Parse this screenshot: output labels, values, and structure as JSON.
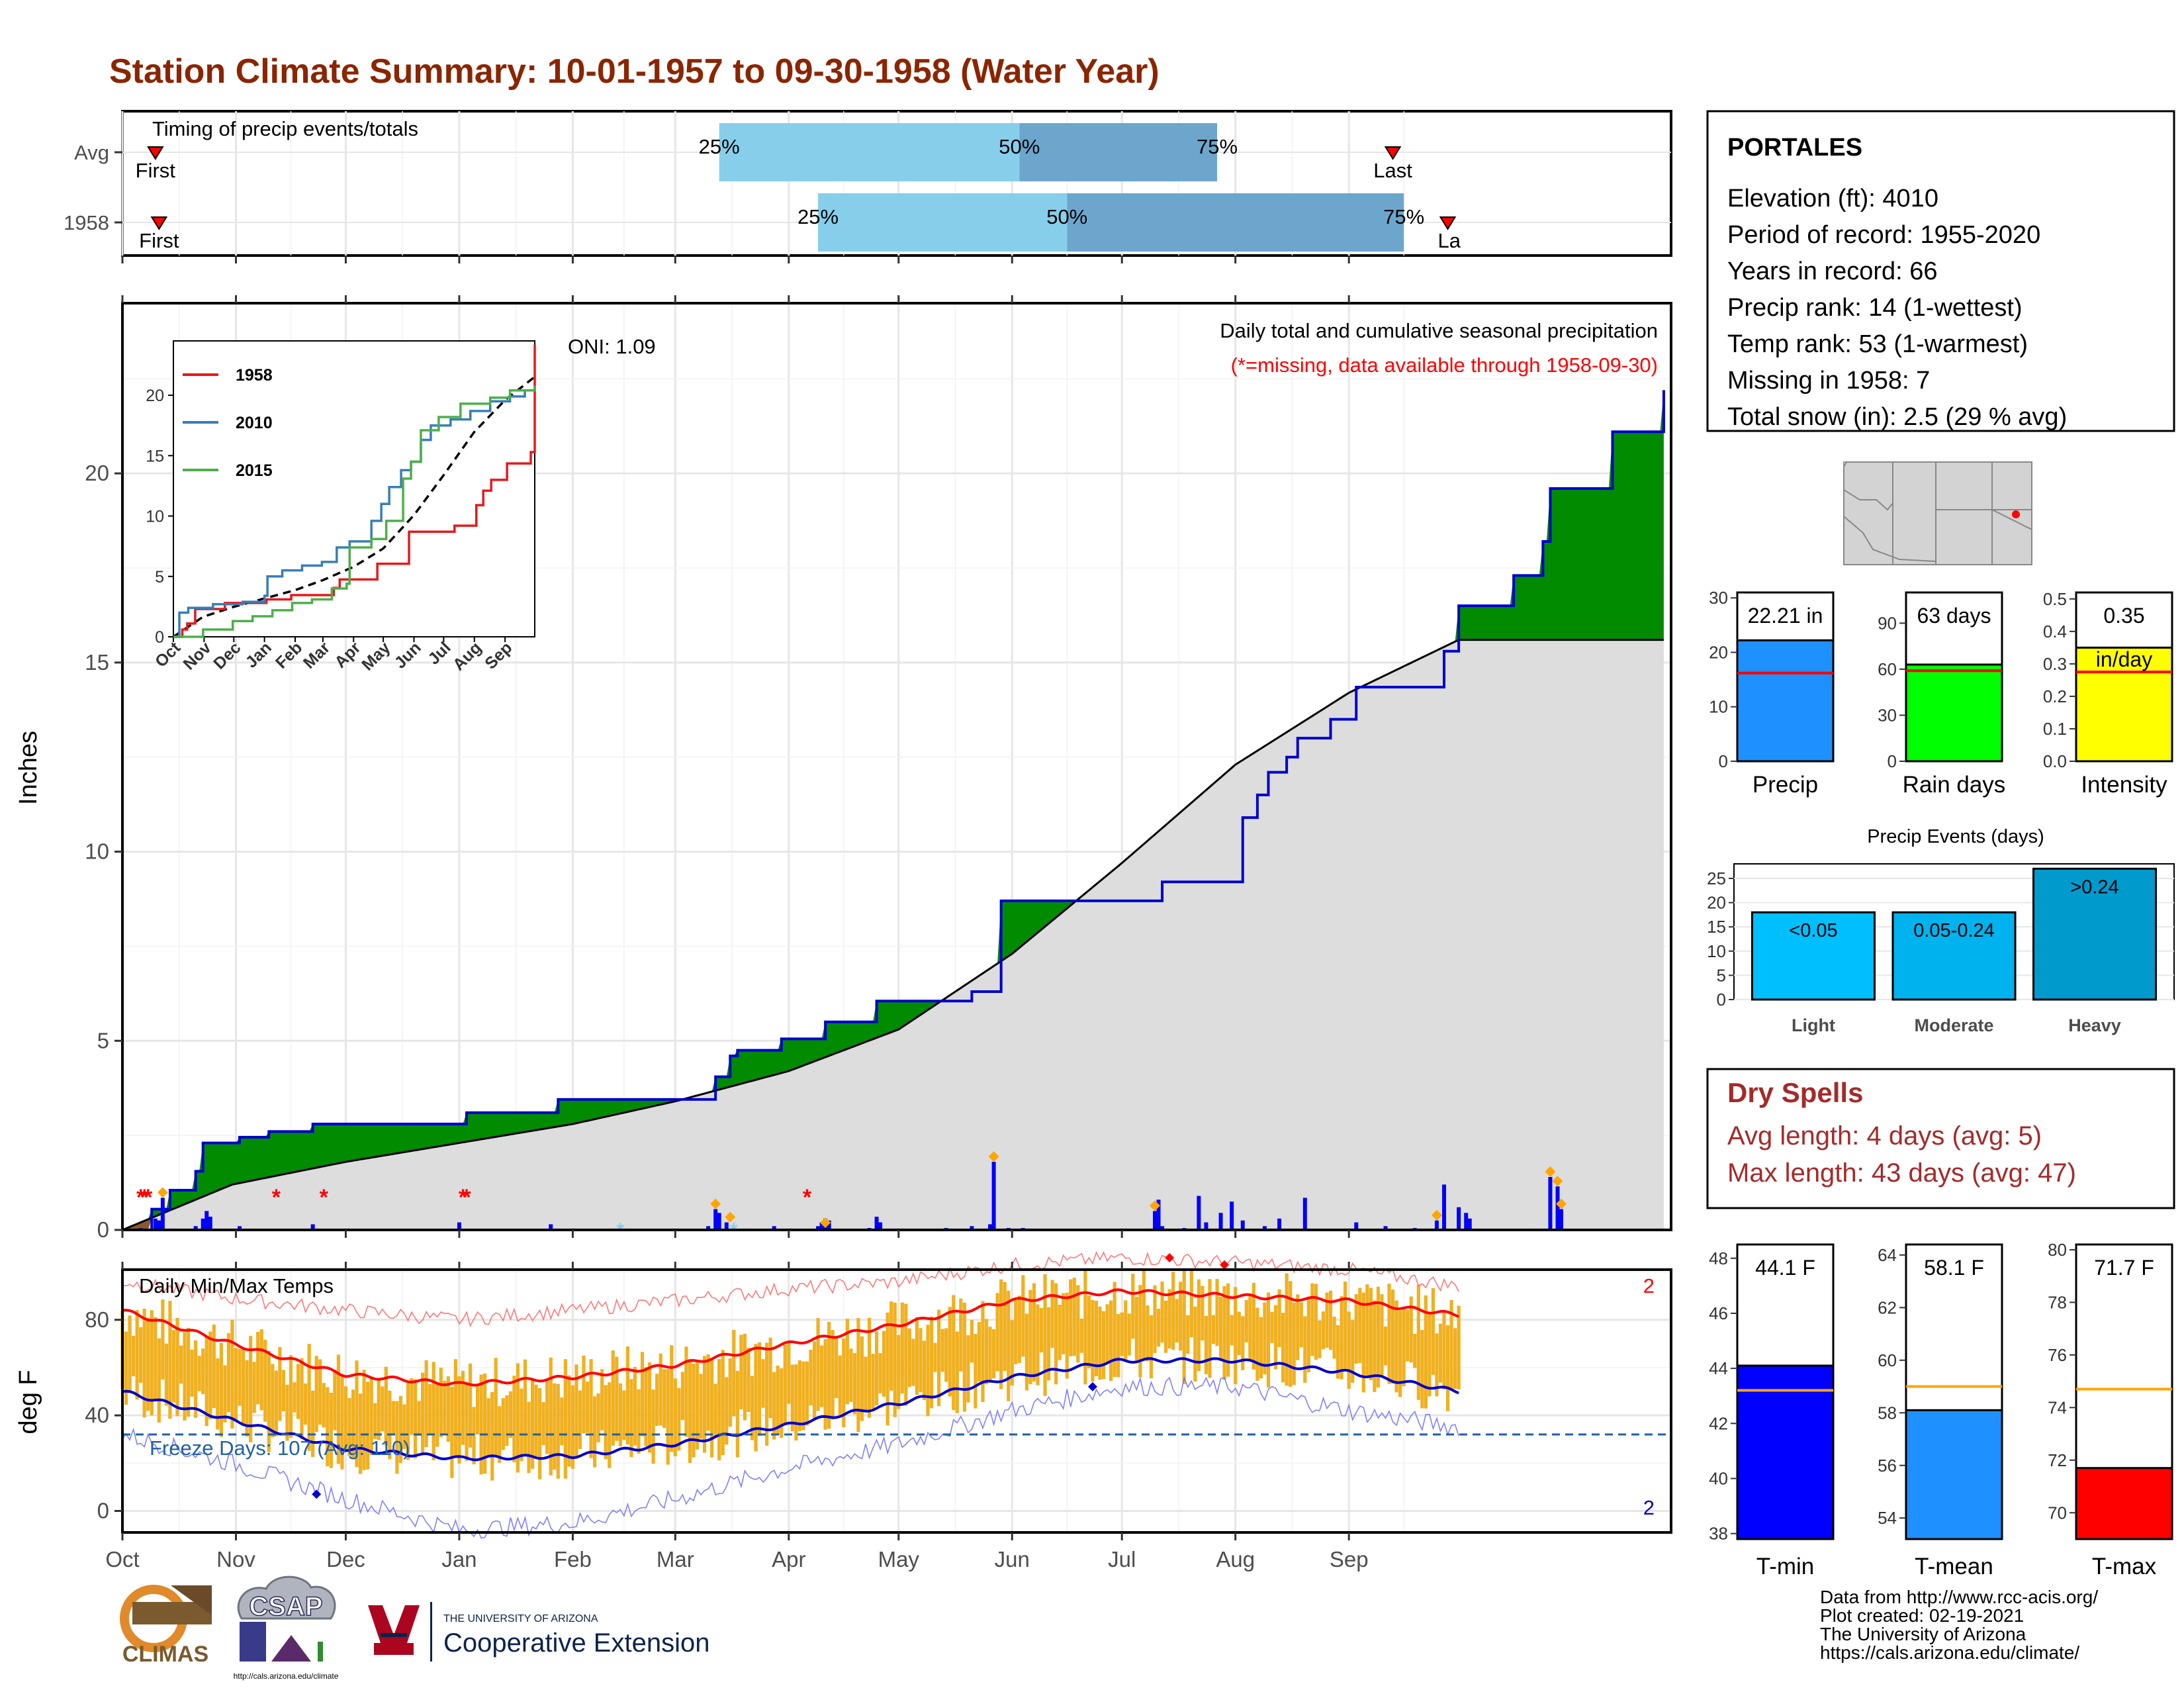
{
  "title": "Station Climate Summary: 10-01-1957 to 09-30-1958 (Water Year)",
  "colors": {
    "title": "#8B2500",
    "dry": "#A52A2A",
    "green": "#008B00",
    "grey_fill": "#DDDDDD",
    "bar_blue": "#0000FF",
    "q_light": "#87CEEB",
    "q_dark": "#6CA6CD",
    "orange": "#F0B020",
    "red": "#FF0000",
    "blue": "#0000CC",
    "freeze": "#1F5FA8"
  },
  "timing": {
    "label": "Timing of precip events/totals",
    "rows": [
      {
        "name": "Avg",
        "first_day": 9,
        "last_day": 347,
        "q25": 163,
        "q50": 245,
        "q75": 299,
        "first_label": "First",
        "last_label": "Last",
        "q25_label": "25%",
        "q50_label": "50%",
        "q75_label": "75%"
      },
      {
        "name": "1958",
        "first_day": 10,
        "last_day": 362,
        "q25": 190,
        "q50": 258,
        "q75": 350,
        "first_label": "First",
        "last_label": "La",
        "q25_label": "25%",
        "q50_label": "50%",
        "q75_label": "75%"
      }
    ]
  },
  "months": [
    "Oct",
    "Nov",
    "Dec",
    "Jan",
    "Feb",
    "Mar",
    "Apr",
    "May",
    "Jun",
    "Jul",
    "Aug",
    "Sep"
  ],
  "month_start_days": [
    0,
    31,
    61,
    92,
    123,
    151,
    182,
    212,
    243,
    273,
    304,
    335
  ],
  "precip_panel": {
    "ylabel": "Inches",
    "ylim": [
      0,
      24.5
    ],
    "yticks": [
      0,
      5,
      10,
      15,
      20
    ],
    "title": "Daily total and cumulative seasonal precipitation",
    "note": "(*=missing, data available through 1958-09-30)",
    "oni": "ONI: 1.09"
  },
  "inset": {
    "ylim": [
      0,
      24.5
    ],
    "yticks": [
      0,
      5,
      10,
      15,
      20
    ],
    "months": [
      "Oct",
      "Nov",
      "Dec",
      "Jan",
      "Feb",
      "Mar",
      "Apr",
      "May",
      "Jun",
      "Jul",
      "Aug",
      "Sep"
    ],
    "legend": [
      {
        "name": "1958",
        "color": "#E41A1C"
      },
      {
        "name": "2010",
        "color": "#377EB8"
      },
      {
        "name": "2015",
        "color": "#4DAF4A"
      }
    ]
  },
  "temp_panel": {
    "ylabel": "deg F",
    "ylim": [
      -9,
      101
    ],
    "yticks": [
      0,
      40,
      80
    ],
    "title": "Daily Min/Max Temps",
    "freeze_label": "Freeze Days: 107 (Avg: 110)",
    "freeze_line": 32,
    "max_count": "2",
    "min_count": "2"
  },
  "station": {
    "name": "PORTALES",
    "lines": [
      "Elevation (ft): 4010",
      "Period of record: 1955-2020",
      "Years in record: 66",
      "Precip rank: 14 (1-wettest)",
      "Temp rank: 53 (1-warmest)",
      "Missing in 1958: 7",
      "Total snow (in): 2.5 (29 % avg)"
    ]
  },
  "summary_bars": [
    {
      "label": "Precip",
      "value_text": "22.21 in",
      "value": 22.21,
      "avg": 16.2,
      "ylim": [
        0,
        31
      ],
      "ticks": [
        0,
        10,
        20,
        30
      ],
      "color": "#1E90FF"
    },
    {
      "label": "Rain days",
      "value_text": "63 days",
      "value": 63,
      "avg": 59,
      "ylim": [
        0,
        110
      ],
      "ticks": [
        0,
        30,
        60,
        90
      ],
      "color": "#00FF00"
    },
    {
      "label": "Intensity",
      "value_text": "0.35",
      "value_text2": "in/day",
      "value": 0.35,
      "avg": 0.275,
      "ylim": [
        0,
        0.52
      ],
      "ticks": [
        0.0,
        0.1,
        0.2,
        0.3,
        0.4,
        0.5
      ],
      "color": "#FFFF00"
    }
  ],
  "events": {
    "title": "Precip Events (days)",
    "ylim": [
      0,
      28
    ],
    "ticks": [
      0,
      5,
      10,
      15,
      20,
      25
    ],
    "bars": [
      {
        "cat": "Light",
        "label": "<0.05",
        "value": 18,
        "color": "#00BFFF"
      },
      {
        "cat": "Moderate",
        "label": "0.05-0.24",
        "value": 18,
        "color": "#00B2EE"
      },
      {
        "cat": "Heavy",
        "label": ">0.24",
        "value": 27,
        "color": "#009ACD"
      }
    ]
  },
  "dry_spells": {
    "title": "Dry Spells",
    "avg": "Avg length: 4 days (avg: 5)",
    "max": "Max length: 43 days (avg: 47)"
  },
  "temp_bars": [
    {
      "label": "T-min",
      "value_text": "44.1 F",
      "value": 44.1,
      "avg": 43.2,
      "ylim": [
        37.8,
        48.5
      ],
      "ticks": [
        38,
        40,
        42,
        44,
        46,
        48
      ],
      "color": "#0000FF"
    },
    {
      "label": "T-mean",
      "value_text": "58.1 F",
      "value": 58.1,
      "avg": 59.0,
      "ylim": [
        53.2,
        64.4
      ],
      "ticks": [
        54,
        56,
        58,
        60,
        62,
        64
      ],
      "color": "#1E90FF"
    },
    {
      "label": "T-max",
      "value_text": "71.7 F",
      "value": 71.7,
      "avg": 74.7,
      "ylim": [
        69.0,
        80.2
      ],
      "ticks": [
        70,
        72,
        74,
        76,
        78,
        80
      ],
      "color": "#FF0000"
    }
  ],
  "credits": [
    "Data from http://www.rcc-acis.org/",
    "Plot created: 02-19-2021",
    "The University of Arizona",
    "https://cals.arizona.edu/climate/"
  ],
  "logos": {
    "climas": "CLIMAS",
    "csap": "CSAP",
    "csap_url": "http://cals.arizona.edu/climate",
    "ua_small": "THE UNIVERSITY OF ARIZONA",
    "ua_big": "Cooperative Extension"
  },
  "chart_data": [
    {
      "type": "area",
      "title": "Daily total and cumulative seasonal precipitation",
      "ylabel": "Inches",
      "ylim": [
        0,
        24.5
      ],
      "series_1958_cumulative": [
        [
          0,
          0
        ],
        [
          8,
          0.55
        ],
        [
          13,
          1.05
        ],
        [
          20,
          1.55
        ],
        [
          22,
          2.3
        ],
        [
          32,
          2.45
        ],
        [
          40,
          2.6
        ],
        [
          52,
          2.8
        ],
        [
          92,
          2.8
        ],
        [
          94,
          3.1
        ],
        [
          117,
          3.1
        ],
        [
          119,
          3.45
        ],
        [
          160,
          3.45
        ],
        [
          162,
          4.05
        ],
        [
          166,
          4.6
        ],
        [
          168,
          4.75
        ],
        [
          178,
          4.75
        ],
        [
          180,
          5.05
        ],
        [
          190,
          5.05
        ],
        [
          192,
          5.5
        ],
        [
          204,
          5.5
        ],
        [
          206,
          6.05
        ],
        [
          230,
          6.05
        ],
        [
          232,
          6.3
        ],
        [
          238,
          6.3
        ],
        [
          240,
          8.7
        ],
        [
          282,
          8.7
        ],
        [
          284,
          9.2
        ],
        [
          304,
          9.2
        ],
        [
          306,
          10.9
        ],
        [
          310,
          11.5
        ],
        [
          313,
          12.1
        ],
        [
          318,
          12.5
        ],
        [
          321,
          13.0
        ],
        [
          330,
          13.5
        ],
        [
          337,
          14.35
        ],
        [
          359,
          14.35
        ],
        [
          361,
          15.3
        ],
        [
          365,
          16.5
        ],
        [
          378,
          16.5
        ],
        [
          380,
          17.3
        ],
        [
          388,
          18.2
        ],
        [
          390,
          19.6
        ],
        [
          403,
          19.6
        ],
        [
          407,
          21.1
        ],
        [
          419,
          21.1
        ],
        [
          421,
          22.2
        ]
      ],
      "series_avg_cumulative": [
        [
          0,
          0
        ],
        [
          30,
          1.2
        ],
        [
          61,
          1.8
        ],
        [
          92,
          2.3
        ],
        [
          123,
          2.8
        ],
        [
          151,
          3.4
        ],
        [
          182,
          4.2
        ],
        [
          212,
          5.3
        ],
        [
          243,
          7.3
        ],
        [
          273,
          9.7
        ],
        [
          304,
          12.3
        ],
        [
          335,
          14.2
        ],
        [
          365,
          15.6
        ]
      ],
      "daily_bars": [
        [
          5,
          0.05
        ],
        [
          9,
          0.3
        ],
        [
          10,
          0.25
        ],
        [
          11,
          0.85
        ],
        [
          20,
          0.1
        ],
        [
          22,
          0.3
        ],
        [
          23,
          0.5
        ],
        [
          24,
          0.35
        ],
        [
          32,
          0.1
        ],
        [
          52,
          0.15
        ],
        [
          92,
          0.2
        ],
        [
          117,
          0.15
        ],
        [
          160,
          0.1
        ],
        [
          162,
          0.55
        ],
        [
          163,
          0.45
        ],
        [
          165,
          0.2
        ],
        [
          178,
          0.1
        ],
        [
          190,
          0.1
        ],
        [
          191,
          0.2
        ],
        [
          192,
          0.3
        ],
        [
          193,
          0.25
        ],
        [
          204,
          0.05
        ],
        [
          206,
          0.35
        ],
        [
          207,
          0.2
        ],
        [
          225,
          0.05
        ],
        [
          232,
          0.1
        ],
        [
          237,
          0.15
        ],
        [
          238,
          1.8
        ],
        [
          242,
          0.05
        ],
        [
          246,
          0.05
        ],
        [
          282,
          0.5
        ],
        [
          283,
          0.8
        ],
        [
          284,
          0.1
        ],
        [
          290,
          0.05
        ],
        [
          294,
          0.9
        ],
        [
          296,
          0.2
        ],
        [
          300,
          0.45
        ],
        [
          303,
          0.75
        ],
        [
          306,
          0.25
        ],
        [
          312,
          0.1
        ],
        [
          316,
          0.3
        ],
        [
          323,
          0.85
        ],
        [
          337,
          0.2
        ],
        [
          345,
          0.1
        ],
        [
          353,
          0.05
        ],
        [
          359,
          0.25
        ],
        [
          361,
          1.2
        ],
        [
          365,
          0.6
        ],
        [
          367,
          0.45
        ],
        [
          368,
          0.3
        ],
        [
          390,
          1.4
        ],
        [
          392,
          1.15
        ],
        [
          393,
          0.55
        ]
      ],
      "missing_days": [
        5,
        6,
        7,
        42,
        55,
        93,
        94,
        187
      ],
      "snow_days": [
        136,
        167
      ]
    },
    {
      "type": "line",
      "title": "Daily Min/Max Temps",
      "ylabel": "deg F",
      "ylim": [
        -9,
        101
      ],
      "freeze_days": "Freeze Days: 107 (Avg: 110)",
      "avg_max": [
        [
          0,
          84
        ],
        [
          30,
          70
        ],
        [
          61,
          57
        ],
        [
          92,
          53
        ],
        [
          123,
          56
        ],
        [
          151,
          61
        ],
        [
          182,
          70
        ],
        [
          212,
          78
        ],
        [
          243,
          88
        ],
        [
          273,
          92
        ],
        [
          304,
          90
        ],
        [
          335,
          88
        ],
        [
          365,
          82
        ]
      ],
      "avg_min": [
        [
          0,
          50
        ],
        [
          30,
          38
        ],
        [
          61,
          26
        ],
        [
          92,
          22
        ],
        [
          123,
          23
        ],
        [
          151,
          28
        ],
        [
          182,
          36
        ],
        [
          212,
          45
        ],
        [
          243,
          56
        ],
        [
          273,
          63
        ],
        [
          304,
          63
        ],
        [
          335,
          58
        ],
        [
          365,
          50
        ]
      ],
      "record_max": [
        [
          0,
          96
        ],
        [
          30,
          89
        ],
        [
          61,
          84
        ],
        [
          92,
          80
        ],
        [
          123,
          84
        ],
        [
          151,
          88
        ],
        [
          182,
          93
        ],
        [
          212,
          96
        ],
        [
          243,
          103
        ],
        [
          273,
          106
        ],
        [
          304,
          104
        ],
        [
          335,
          101
        ],
        [
          365,
          94
        ]
      ],
      "record_min": [
        [
          0,
          32
        ],
        [
          30,
          20
        ],
        [
          61,
          5
        ],
        [
          92,
          -8
        ],
        [
          123,
          -5
        ],
        [
          151,
          5
        ],
        [
          182,
          18
        ],
        [
          212,
          28
        ],
        [
          243,
          42
        ],
        [
          273,
          52
        ],
        [
          304,
          52
        ],
        [
          335,
          42
        ],
        [
          365,
          35
        ]
      ]
    },
    {
      "type": "bar",
      "title": "Precip Events (days)",
      "categories": [
        "Light",
        "Moderate",
        "Heavy"
      ],
      "labels": [
        "<0.05",
        "0.05-0.24",
        ">0.24"
      ],
      "values": [
        18,
        18,
        27
      ]
    },
    {
      "type": "bar",
      "categories": [
        "Precip",
        "Rain days",
        "Intensity"
      ],
      "values": [
        22.21,
        63,
        0.35
      ],
      "value_labels": [
        "22.21 in",
        "63 days",
        "0.35 in/day"
      ]
    },
    {
      "type": "bar",
      "categories": [
        "T-min",
        "T-mean",
        "T-max"
      ],
      "values": [
        44.1,
        58.1,
        71.7
      ],
      "value_labels": [
        "44.1 F",
        "58.1 F",
        "71.7 F"
      ]
    }
  ]
}
